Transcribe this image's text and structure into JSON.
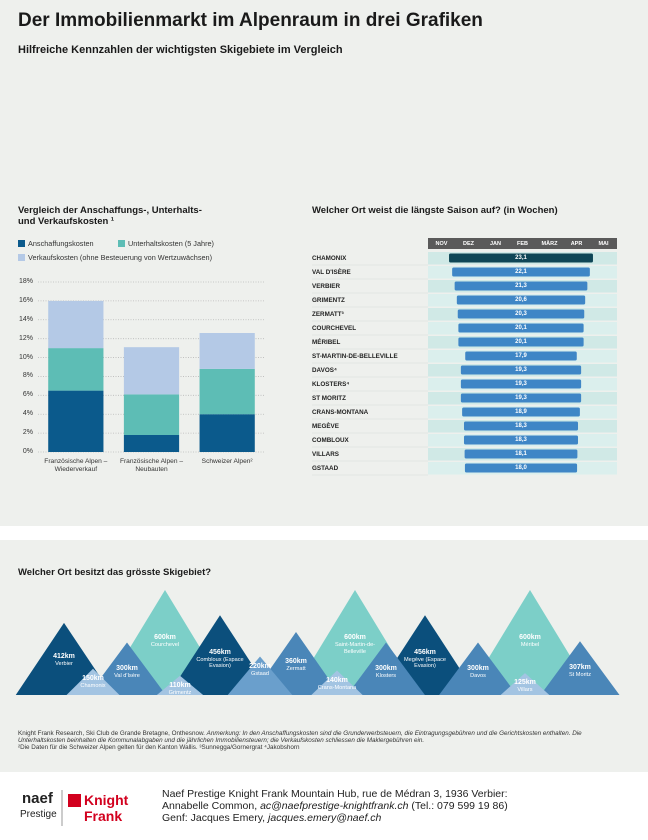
{
  "header": {
    "title": "Der Immobilienmarkt im Alpenraum in drei Grafiken",
    "subtitle": "Hilfreiche Kennzahlen der wichtigsten Skigebiete im Vergleich"
  },
  "chart_data": [
    {
      "type": "stacked-bar",
      "title": "Vergleich der Anschaffungs-, Unterhalts- und Verkaufskosten ¹",
      "categories": [
        "Französische Alpen – Wiederverkauf",
        "Französische Alpen – Neubauten",
        "Schweizer Alpen²"
      ],
      "series": [
        {
          "name": "Anschaffungskosten",
          "color": "#0b5a8c",
          "values": [
            6.5,
            1.8,
            4
          ]
        },
        {
          "name": "Unterhaltskosten (5 Jahre)",
          "color": "#5dbdb5",
          "values": [
            4.5,
            4.3,
            4.8
          ]
        },
        {
          "name": "Verkaufskosten (ohne Besteuerung von Wertzuwächsen)",
          "color": "#b4c9e6",
          "values": [
            5,
            5,
            3.8
          ]
        }
      ],
      "ylim": [
        0,
        18
      ],
      "yticks": [
        {
          "value": 0,
          "label": "0%"
        },
        {
          "value": 2,
          "label": "2%"
        },
        {
          "value": 4,
          "label": "4%"
        },
        {
          "value": 6,
          "label": "6%"
        },
        {
          "value": 8,
          "label": "8%"
        },
        {
          "value": 10,
          "label": "10%"
        },
        {
          "value": 12,
          "label": "12%"
        },
        {
          "value": 14,
          "label": "14%"
        },
        {
          "value": 16,
          "label": "16%"
        },
        {
          "value": 18,
          "label": "18%"
        }
      ],
      "grid": true
    },
    {
      "type": "season-bar",
      "title": "Welcher Ort weist die längste Saison auf? (in Wochen)",
      "months": [
        "NOV",
        "DEZ",
        "JAN",
        "FEB",
        "MÄRZ",
        "APR",
        "MAI"
      ],
      "categories": [
        "CHAMONIX",
        "VAL D'ISÈRE",
        "VERBIER",
        "GRIMENTZ",
        "ZERMATT³",
        "COURCHEVEL",
        "MÉRIBEL",
        "ST-MARTIN-DE-BELLEVILLE",
        "DAVOS⁴",
        "KLOSTERS⁴",
        "ST MORITZ",
        "CRANS-MONTANA",
        "MEGÈVE",
        "COMBLOUX",
        "VILLARS",
        "GSTAAD"
      ],
      "values": [
        23.1,
        22.1,
        21.3,
        20.6,
        20.3,
        20.1,
        20.1,
        17.9,
        19.3,
        19.3,
        19.3,
        18.9,
        18.3,
        18.3,
        18.1,
        18.0
      ],
      "value_labels": [
        "23,1",
        "22,1",
        "21,3",
        "20,6",
        "20,3",
        "20,1",
        "20,1",
        "17,9",
        "19,3",
        "19,3",
        "19,3",
        "18,9",
        "18,3",
        "18,3",
        "18,1",
        "18,0"
      ],
      "colors": [
        "#0f4656",
        "#3f86c6",
        "#3f86c6",
        "#3f86c6",
        "#3f86c6",
        "#3f86c6",
        "#3f86c6",
        "#3f86c6",
        "#3f86c6",
        "#3f86c6",
        "#3f86c6",
        "#3f86c6",
        "#3f86c6",
        "#3f86c6",
        "#3f86c6",
        "#3f86c6"
      ]
    },
    {
      "type": "mountain",
      "title": "Welcher Ort besitzt das grösste Skigebiet?",
      "categories": [
        "Verbier",
        "Chamonix",
        "Val d'Isère",
        "Courchevel",
        "Grimentz",
        "Combloux (Espace Evasion)",
        "Gstaad",
        "Zermatt",
        "Crans-Montana",
        "Saint-Martin-de-Belleville",
        "Klosters",
        "Megève (Espace Evasion)",
        "Davos",
        "Méribel",
        "Villars",
        "St Moritz"
      ],
      "values": [
        412,
        150,
        300,
        600,
        110,
        456,
        220,
        360,
        140,
        600,
        300,
        456,
        300,
        600,
        125,
        307
      ],
      "value_labels": [
        "412km",
        "150km",
        "300km",
        "600km",
        "110km",
        "456km",
        "220km",
        "360km",
        "140km",
        "600km",
        "300km",
        "456km",
        "300km",
        "600km",
        "125km",
        "307km"
      ],
      "colors": [
        "#0b4f7c",
        "#a3c4e2",
        "#4a86b8",
        "#7ccfc8",
        "#a3c4e2",
        "#0b4f7c",
        "#6a9fcc",
        "#4a86b8",
        "#a3c4e2",
        "#7ccfc8",
        "#4a86b8",
        "#0b4f7c",
        "#4a86b8",
        "#7ccfc8",
        "#a3c4e2",
        "#4a86b8"
      ]
    }
  ],
  "notes": {
    "source": "Knight Frank Research, Ski Club de Grande Bretagne, Onthesnow.",
    "remark": "Anmerkung: In den Anschaffungskosten sind die Grunderwerbsteuern, die Eintragungsgebühren und die Gerichtskosten enthalten. Die Unterhaltskosten beinhalten die Kommunalabgaben und die jährlichen Immobiliensteuern; die Verkaufskosten schliessen die Maklergebühren ein.",
    "footnotes": "²Die Daten für die Schweizer Alpen gelten für den Kanton Wallis. ³Sunnegga/Gornergrat ⁴Jakobshorn"
  },
  "footer": {
    "logo1": "naef",
    "logo1_sub": "Prestige",
    "logo2_top": "Knight",
    "logo2_bottom": "Frank",
    "line1": "Naef Prestige Knight Frank Mountain Hub, rue de Médran 3, 1936 Verbier:",
    "line2_name": "Annabelle Common, ",
    "line2_email": "ac@naefprestige-knightfrank.ch",
    "line2_tel": " (Tel.: 079 599 19 86)",
    "line3_name": "Genf: Jacques Emery, ",
    "line3_email": "jacques.emery@naef.ch"
  }
}
